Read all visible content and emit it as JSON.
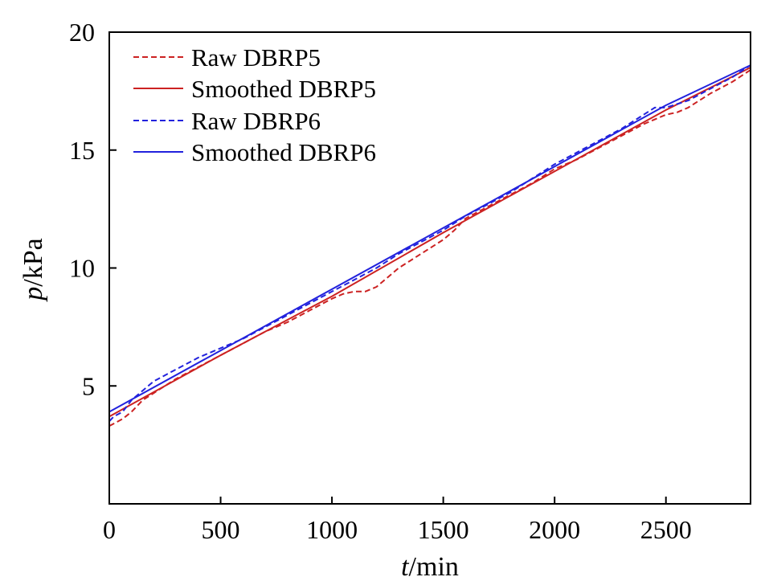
{
  "chart_data": {
    "type": "line",
    "xlabel": {
      "var": "t",
      "unit": "/min"
    },
    "ylabel": {
      "var": "p",
      "unit": "/kPa"
    },
    "xlim": [
      0,
      2880
    ],
    "ylim": [
      0,
      20
    ],
    "xticks": [
      "0",
      "500",
      "1000",
      "1500",
      "2000",
      "2500"
    ],
    "xtick_values": [
      0,
      500,
      1000,
      1500,
      2000,
      2500
    ],
    "yticks": [
      "5",
      "10",
      "15",
      "20"
    ],
    "ytick_values": [
      5,
      10,
      15,
      20
    ],
    "grid": false,
    "legend_position": "top-left",
    "series": [
      {
        "name": "Raw DBRP5",
        "color": "#cc2222",
        "style": "dashed",
        "x": [
          0,
          20,
          60,
          100,
          150,
          200,
          300,
          400,
          500,
          600,
          700,
          800,
          900,
          1000,
          1050,
          1100,
          1150,
          1200,
          1250,
          1300,
          1400,
          1500,
          1550,
          1600,
          1700,
          1800,
          1900,
          2000,
          2100,
          2200,
          2300,
          2400,
          2500,
          2550,
          2600,
          2700,
          2800,
          2880
        ],
        "y": [
          3.3,
          3.4,
          3.6,
          3.9,
          4.4,
          4.7,
          5.3,
          5.8,
          6.3,
          6.8,
          7.3,
          7.7,
          8.2,
          8.7,
          8.9,
          9.0,
          9.0,
          9.2,
          9.6,
          10.0,
          10.6,
          11.2,
          11.6,
          12.1,
          12.6,
          13.1,
          13.6,
          14.2,
          14.6,
          15.1,
          15.6,
          16.1,
          16.5,
          16.6,
          16.8,
          17.4,
          17.9,
          18.4
        ]
      },
      {
        "name": "Smoothed DBRP5",
        "color": "#cc2222",
        "style": "solid",
        "x": [
          0,
          500,
          1000,
          1500,
          2000,
          2500,
          2880
        ],
        "y": [
          3.7,
          6.3,
          8.8,
          11.5,
          14.1,
          16.7,
          18.5
        ]
      },
      {
        "name": "Raw DBRP6",
        "color": "#2222dd",
        "style": "dashed",
        "x": [
          0,
          20,
          60,
          100,
          150,
          200,
          300,
          400,
          500,
          600,
          700,
          800,
          900,
          1000,
          1100,
          1200,
          1300,
          1400,
          1500,
          1600,
          1700,
          1800,
          1900,
          2000,
          2100,
          2200,
          2300,
          2400,
          2450,
          2500,
          2600,
          2700,
          2800,
          2880
        ],
        "y": [
          3.5,
          3.7,
          3.9,
          4.4,
          4.8,
          5.2,
          5.7,
          6.2,
          6.6,
          7.0,
          7.5,
          8.0,
          8.5,
          9.0,
          9.5,
          10.0,
          10.6,
          11.1,
          11.6,
          12.2,
          12.7,
          13.2,
          13.8,
          14.4,
          14.9,
          15.4,
          15.9,
          16.5,
          16.8,
          16.8,
          17.1,
          17.6,
          18.1,
          18.6
        ]
      },
      {
        "name": "Smoothed DBRP6",
        "color": "#2222dd",
        "style": "solid",
        "x": [
          0,
          500,
          1000,
          1500,
          2000,
          2500,
          2880
        ],
        "y": [
          3.9,
          6.5,
          9.1,
          11.7,
          14.3,
          16.9,
          18.6
        ]
      }
    ]
  }
}
